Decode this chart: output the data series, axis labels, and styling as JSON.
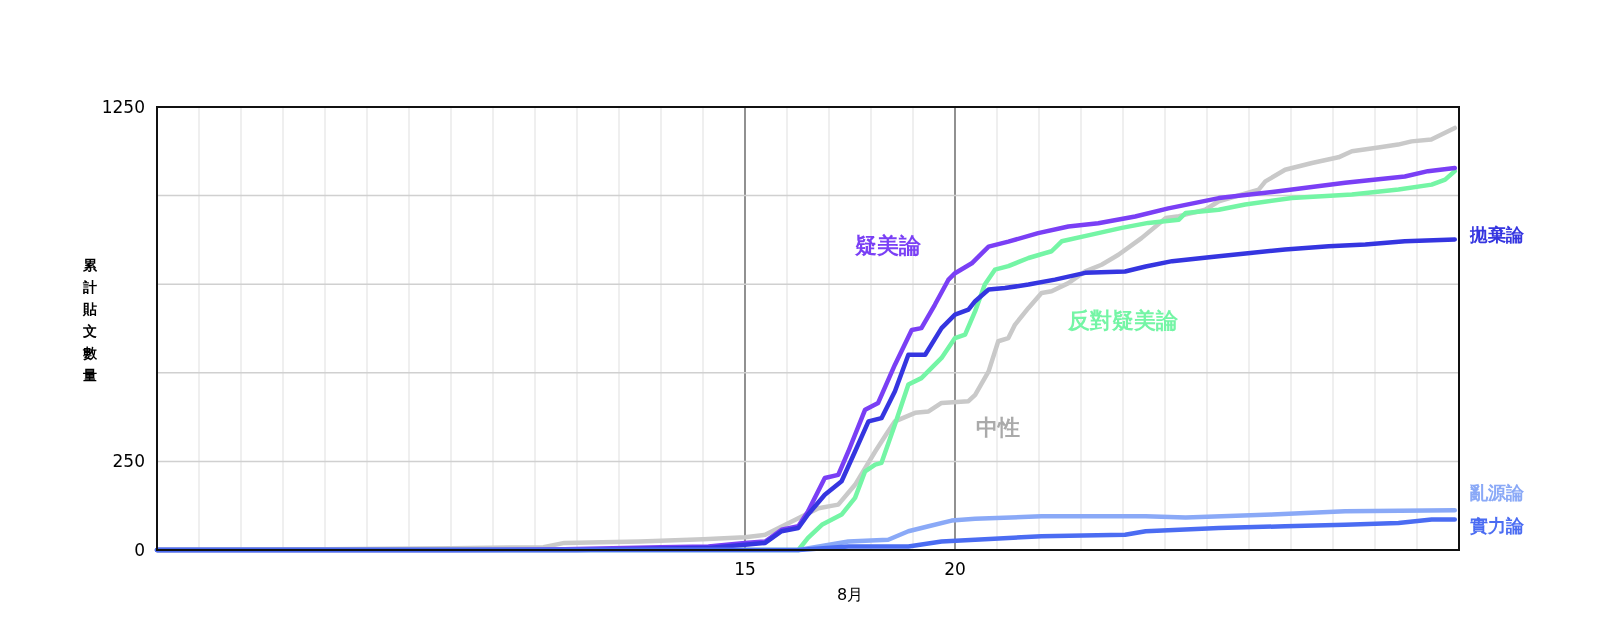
{
  "chart_data": {
    "type": "line",
    "xlabel": "8月",
    "ylabel": "累計貼文數量",
    "xlim": [
      1,
      32
    ],
    "ylim": [
      0,
      1250
    ],
    "xticks": [
      {
        "value": 1,
        "label": null
      },
      {
        "value": 2,
        "label": null
      },
      {
        "value": 3,
        "label": null
      },
      {
        "value": 4,
        "label": null
      },
      {
        "value": 5,
        "label": null
      },
      {
        "value": 6,
        "label": null
      },
      {
        "value": 7,
        "label": null
      },
      {
        "value": 8,
        "label": null
      },
      {
        "value": 9,
        "label": null
      },
      {
        "value": 10,
        "label": null
      },
      {
        "value": 11,
        "label": null
      },
      {
        "value": 12,
        "label": null
      },
      {
        "value": 13,
        "label": null
      },
      {
        "value": 14,
        "label": null
      },
      15,
      {
        "value": 16,
        "label": null
      },
      {
        "value": 17,
        "label": null
      },
      {
        "value": 18,
        "label": null
      },
      {
        "value": 19,
        "label": null
      },
      20,
      {
        "value": 21,
        "label": null
      },
      {
        "value": 22,
        "label": null
      },
      {
        "value": 23,
        "label": null
      },
      {
        "value": 24,
        "label": null
      },
      {
        "value": 25,
        "label": null
      },
      {
        "value": 26,
        "label": null
      },
      {
        "value": 27,
        "label": null
      },
      {
        "value": 28,
        "label": null
      },
      {
        "value": 29,
        "label": null
      },
      {
        "value": 30,
        "label": null
      },
      {
        "value": 31,
        "label": null
      },
      {
        "value": 32,
        "label": null
      }
    ],
    "yticks": [
      0,
      250,
      {
        "value": 500,
        "label": null
      },
      {
        "value": 750,
        "label": null
      },
      {
        "value": 1000,
        "label": null
      },
      1250
    ],
    "grid": true,
    "marker": "none",
    "line_style": "solid",
    "series": [
      {
        "name": "中性",
        "color": "#c9c9c9",
        "x": [
          1,
          5,
          8,
          10.2,
          10.7,
          12.5,
          14,
          15,
          15.48,
          16.75,
          17.22,
          17.62,
          18.1,
          18.41,
          18.57,
          19.05,
          19.37,
          19.68,
          20.32,
          20.48,
          20.8,
          21.03,
          21.27,
          21.43,
          21.75,
          22.06,
          22.3,
          22.7,
          23.1,
          23.49,
          23.89,
          24.44,
          25.02,
          25.33,
          25.96,
          26.28,
          27.23,
          27.39,
          27.86,
          28.5,
          29.13,
          29.45,
          30.08,
          30.55,
          30.87,
          31.34,
          31.9
        ],
        "values": [
          0,
          2,
          5,
          8,
          20,
          24,
          30,
          36,
          43,
          118,
          128,
          184,
          278,
          335,
          363,
          387,
          391,
          415,
          420,
          438,
          504,
          589,
          598,
          636,
          683,
          725,
          730,
          753,
          786,
          805,
          833,
          880,
          937,
          942,
          960,
          984,
          1017,
          1040,
          1073,
          1092,
          1108,
          1125,
          1136,
          1144,
          1153,
          1158,
          1191
        ]
      },
      {
        "name": "反對疑美論",
        "color": "#74f5a5",
        "x": [
          1,
          16.27,
          16.5,
          16.83,
          17.3,
          17.62,
          17.86,
          18.1,
          18.25,
          18.57,
          18.89,
          19.2,
          19.68,
          20,
          20.24,
          20.48,
          20.71,
          20.95,
          21.27,
          21.75,
          22.3,
          22.54,
          23.25,
          23.97,
          24.6,
          25.33,
          25.49,
          26.28,
          26.91,
          28.02,
          29.45,
          30.56,
          31.35,
          31.67,
          31.9
        ],
        "values": [
          0,
          0,
          34,
          71,
          100,
          147,
          222,
          241,
          246,
          354,
          467,
          485,
          542,
          598,
          608,
          674,
          749,
          791,
          801,
          824,
          843,
          871,
          890,
          909,
          923,
          932,
          951,
          960,
          975,
          993,
          1003,
          1017,
          1031,
          1045,
          1069
        ]
      },
      {
        "name": "疑美論",
        "color": "#7a3ff5",
        "x": [
          1,
          8,
          10.7,
          13,
          14.13,
          15,
          15.48,
          15.87,
          16.27,
          16.5,
          16.9,
          17.22,
          17.46,
          17.86,
          18.17,
          18.57,
          18.97,
          19.2,
          19.52,
          19.84,
          20,
          20.4,
          20.8,
          21.27,
          21.98,
          22.7,
          23.41,
          24.29,
          25.08,
          26.28,
          27.7,
          29.29,
          30.71,
          31.26,
          31.9
        ],
        "values": [
          0,
          0,
          2,
          8,
          10,
          20,
          24,
          57,
          67,
          109,
          203,
          212,
          278,
          396,
          415,
          523,
          621,
          626,
          692,
          762,
          781,
          809,
          856,
          870,
          894,
          913,
          922,
          941,
          964,
          993,
          1012,
          1036,
          1054,
          1069,
          1078
        ]
      },
      {
        "name": "拋棄論",
        "color": "#3535e0",
        "x": [
          1,
          11,
          14.13,
          15,
          15.48,
          15.87,
          16.27,
          16.5,
          16.9,
          17.3,
          17.62,
          17.94,
          18.25,
          18.57,
          18.89,
          19.29,
          19.68,
          20,
          20.32,
          20.48,
          20.8,
          21.19,
          21.75,
          22.38,
          23.1,
          24.05,
          24.54,
          25.17,
          26.28,
          27.86,
          28.9,
          29.77,
          30.71,
          31.9
        ],
        "values": [
          0,
          0,
          6,
          15,
          20,
          53,
          62,
          100,
          156,
          194,
          278,
          363,
          372,
          448,
          551,
          551,
          626,
          664,
          678,
          702,
          735,
          739,
          749,
          763,
          782,
          786,
          800,
          815,
          829,
          848,
          857,
          862,
          871,
          876
        ]
      },
      {
        "name": "亂源論",
        "color": "#8aa9f7",
        "x": [
          1,
          16.27,
          17.46,
          18.41,
          18.89,
          19.37,
          19.92,
          20.48,
          22.06,
          24.54,
          25.49,
          27.55,
          29.29,
          31.9
        ],
        "values": [
          0,
          0,
          24,
          29,
          53,
          67,
          83,
          88,
          95,
          95,
          92,
          100,
          109,
          112
        ]
      },
      {
        "name": "實力論",
        "color": "#4b6cf2",
        "x": [
          1,
          16.27,
          17.46,
          18.89,
          19.68,
          20.48,
          22.06,
          24.05,
          24.54,
          26.28,
          27.86,
          29.29,
          30.56,
          31.35,
          31.9
        ],
        "values": [
          0,
          0,
          10,
          10,
          24,
          29,
          39,
          43,
          53,
          62,
          67,
          71,
          76,
          86,
          86
        ]
      }
    ]
  }
}
